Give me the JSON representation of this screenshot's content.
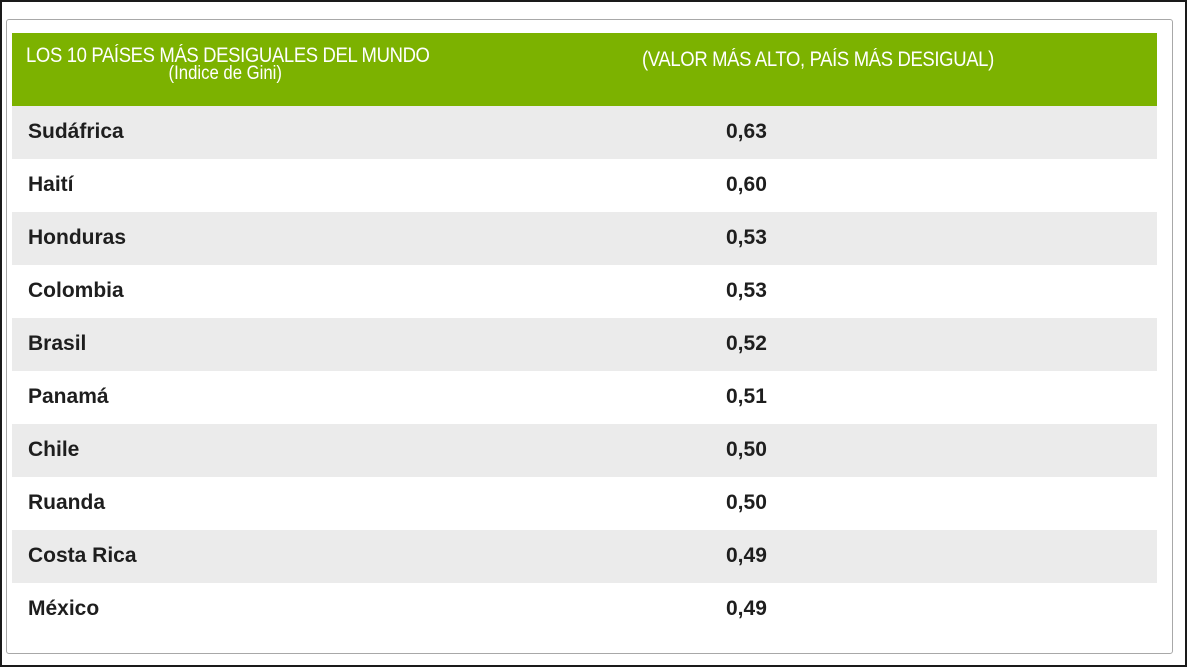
{
  "chart_data": {
    "type": "table",
    "columns": [
      {
        "title": "LOS 10 PAÍSES MÁS DESIGUALES DEL MUNDO",
        "subtitle": "(Indice de Gini)"
      },
      {
        "title": "(VALOR MÁS ALTO, PAÍS MÁS DESIGUAL)"
      }
    ],
    "rows": [
      {
        "country": "Sudáfrica",
        "value": "0,63"
      },
      {
        "country": "Haití",
        "value": "0,60"
      },
      {
        "country": "Honduras",
        "value": "0,53"
      },
      {
        "country": "Colombia",
        "value": "0,53"
      },
      {
        "country": "Brasil",
        "value": "0,52"
      },
      {
        "country": "Panamá",
        "value": "0,51"
      },
      {
        "country": "Chile",
        "value": "0,50"
      },
      {
        "country": "Ruanda",
        "value": "0,50"
      },
      {
        "country": "Costa Rica",
        "value": "0,49"
      },
      {
        "country": "México",
        "value": "0,49"
      }
    ],
    "values": [
      0.63,
      0.6,
      0.53,
      0.53,
      0.52,
      0.51,
      0.5,
      0.5,
      0.49,
      0.49
    ]
  },
  "colors": {
    "header_background": "#7cb200",
    "header_text": "#ffffff",
    "row_shade": "#ebebeb",
    "row_text": "#1e1e1e"
  }
}
